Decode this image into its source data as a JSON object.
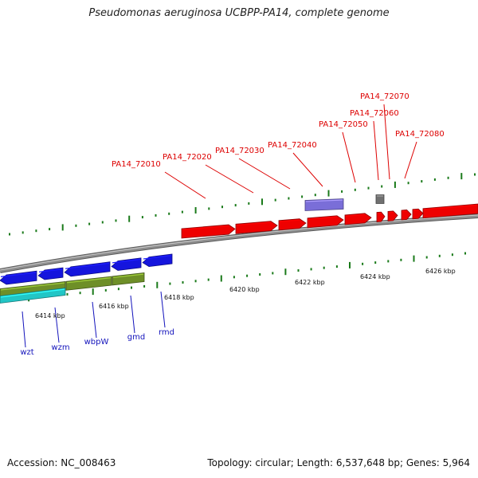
{
  "title": "Pseudomonas aeruginosa UCBPP-PA14, complete genome",
  "footer": {
    "accession": "Accession: NC_008463",
    "topology": "Topology: circular; Length: 6,537,648 bp; Genes: 5,964"
  },
  "colors": {
    "backbone": "#8e8e8e",
    "tick": "#1a7a1a",
    "upper_gene": "#ee0000",
    "upper_label": "#dd0000",
    "lower_label": "#1111bb",
    "blue_gene": "#1515dd",
    "olive_gene": "#6e8f28",
    "cyan_gene": "#22c6c6",
    "purple_gene": "#7a6ed8",
    "gray_gene": "#707070"
  },
  "scale": {
    "unit": "kbp",
    "labels": [
      "6414 kbp",
      "6416 kbp",
      "6418 kbp",
      "6420 kbp",
      "6422 kbp",
      "6424 kbp",
      "6426 kbp"
    ]
  },
  "upper_labels": [
    "PA14_72010",
    "PA14_72020",
    "PA14_72030",
    "PA14_72040",
    "PA14_72050",
    "PA14_72060",
    "PA14_72070",
    "PA14_72080"
  ],
  "lower_labels": [
    "wzt",
    "wzm",
    "wbpW",
    "gmd",
    "rmd"
  ]
}
